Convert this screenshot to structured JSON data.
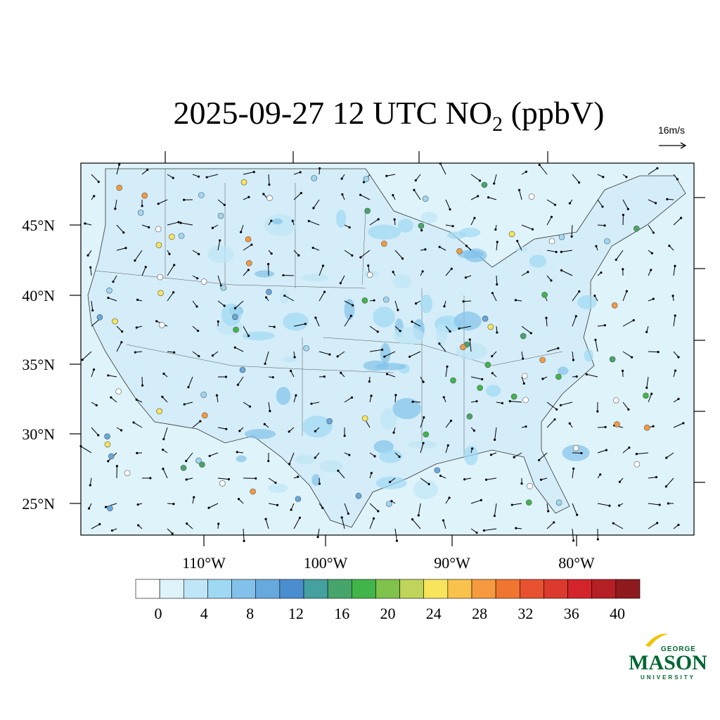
{
  "title": {
    "main": "2025-09-27 12 UTC NO",
    "subscript": "2",
    "suffix": " (ppbV)"
  },
  "wind_reference": "16m/s",
  "latitude_labels": [
    "45°N",
    "40°N",
    "35°N",
    "30°N",
    "25°N"
  ],
  "longitude_labels": [
    "110°W",
    "100°W",
    "90°W",
    "80°W"
  ],
  "colorbar": {
    "colors": [
      "#ffffff",
      "#dff3fb",
      "#bfe6f7",
      "#9fd8f3",
      "#82c2ea",
      "#67a9dd",
      "#4b8ecf",
      "#45a0a0",
      "#47a56b",
      "#41b54a",
      "#7fc24c",
      "#bfd45a",
      "#f9e55c",
      "#f8c24c",
      "#f59a3e",
      "#f07530",
      "#e85130",
      "#dc3a2d",
      "#d3242b",
      "#b51f26",
      "#8f1a1e"
    ],
    "ticks": [
      0,
      4,
      8,
      12,
      16,
      20,
      24,
      28,
      32,
      36,
      40
    ]
  },
  "logo": {
    "top": "GEORGE",
    "name": "MASON",
    "bottom": "UNIVERSITY"
  }
}
